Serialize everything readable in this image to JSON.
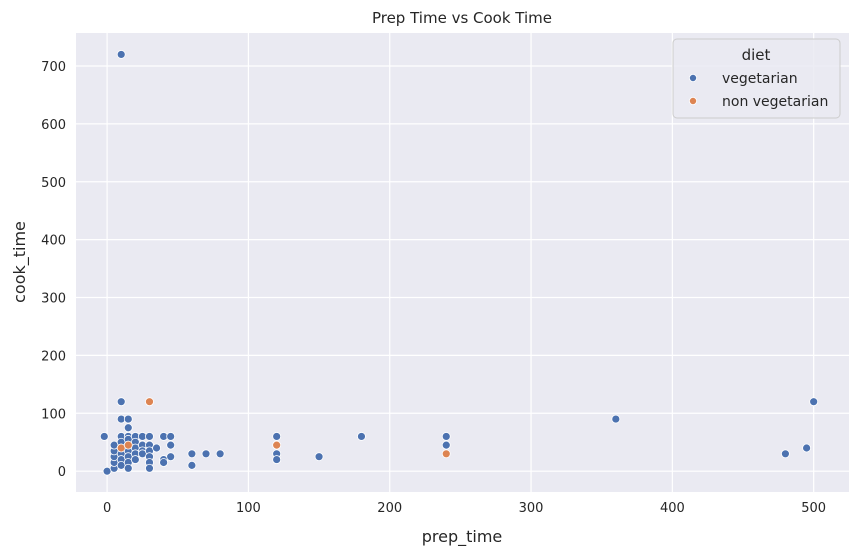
{
  "chart_data": {
    "type": "scatter",
    "title": "Prep Time vs Cook Time",
    "xlabel": "prep_time",
    "ylabel": "cook_time",
    "xlim": [
      -22,
      525
    ],
    "ylim": [
      -36,
      757
    ],
    "xticks": [
      0,
      100,
      200,
      300,
      400,
      500
    ],
    "yticks": [
      0,
      100,
      200,
      300,
      400,
      500,
      600,
      700
    ],
    "grid": true,
    "legend": {
      "title": "diet",
      "placement": "top-right"
    },
    "series": [
      {
        "name": "vegetarian",
        "color": "#4c72b0",
        "points": [
          [
            0,
            0
          ],
          [
            -2,
            60
          ],
          [
            5,
            5
          ],
          [
            5,
            15
          ],
          [
            5,
            25
          ],
          [
            5,
            35
          ],
          [
            5,
            45
          ],
          [
            10,
            720
          ],
          [
            10,
            120
          ],
          [
            10,
            90
          ],
          [
            10,
            60
          ],
          [
            10,
            50
          ],
          [
            10,
            40
          ],
          [
            10,
            30
          ],
          [
            10,
            20
          ],
          [
            10,
            10
          ],
          [
            15,
            90
          ],
          [
            15,
            75
          ],
          [
            15,
            60
          ],
          [
            15,
            55
          ],
          [
            15,
            45
          ],
          [
            15,
            35
          ],
          [
            15,
            25
          ],
          [
            15,
            15
          ],
          [
            15,
            5
          ],
          [
            20,
            60
          ],
          [
            20,
            50
          ],
          [
            20,
            40
          ],
          [
            20,
            30
          ],
          [
            20,
            20
          ],
          [
            25,
            60
          ],
          [
            25,
            45
          ],
          [
            25,
            35
          ],
          [
            25,
            30
          ],
          [
            30,
            60
          ],
          [
            30,
            45
          ],
          [
            30,
            35
          ],
          [
            30,
            25
          ],
          [
            30,
            15
          ],
          [
            30,
            5
          ],
          [
            35,
            40
          ],
          [
            40,
            60
          ],
          [
            40,
            20
          ],
          [
            40,
            15
          ],
          [
            45,
            60
          ],
          [
            45,
            45
          ],
          [
            45,
            25
          ],
          [
            60,
            30
          ],
          [
            60,
            10
          ],
          [
            70,
            30
          ],
          [
            80,
            30
          ],
          [
            120,
            60
          ],
          [
            120,
            30
          ],
          [
            120,
            20
          ],
          [
            150,
            25
          ],
          [
            180,
            60
          ],
          [
            240,
            60
          ],
          [
            240,
            45
          ],
          [
            360,
            90
          ],
          [
            480,
            30
          ],
          [
            495,
            40
          ],
          [
            500,
            120
          ]
        ]
      },
      {
        "name": "non vegetarian",
        "color": "#dd8452",
        "points": [
          [
            10,
            40
          ],
          [
            15,
            45
          ],
          [
            30,
            120
          ],
          [
            120,
            45
          ],
          [
            240,
            30
          ]
        ]
      }
    ]
  }
}
